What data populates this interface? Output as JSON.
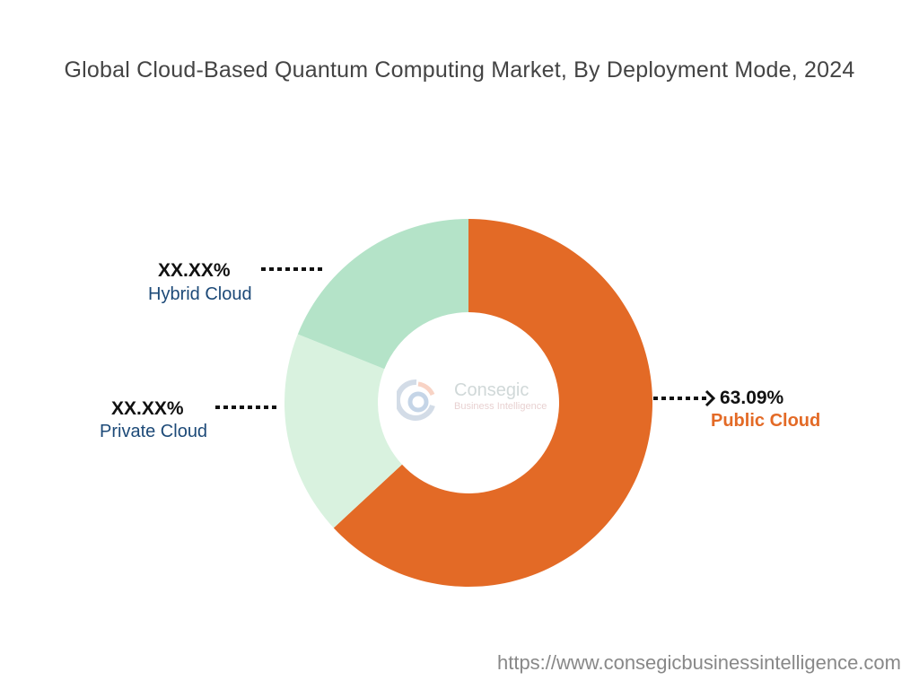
{
  "chart_data": {
    "type": "pie",
    "variant": "donut",
    "title": "Global Cloud-Based Quantum Computing Market, By Deployment Mode, 2024",
    "categories": [
      "Public Cloud",
      "Private Cloud",
      "Hybrid Cloud"
    ],
    "values": [
      63.09,
      18.0,
      18.91
    ],
    "value_labels": [
      "63.09%",
      "XX.XX%",
      "XX.XX%"
    ],
    "colors": [
      "#E36A26",
      "#D9F2DF",
      "#B4E3C8"
    ],
    "label_colors": [
      "#E36A26",
      "#1d4a78",
      "#1d4a78"
    ]
  },
  "watermark": {
    "line1": "Consegic",
    "line2": "Business Intelligence"
  },
  "footer": {
    "url": "https://www.consegicbusinessintelligence.com"
  }
}
